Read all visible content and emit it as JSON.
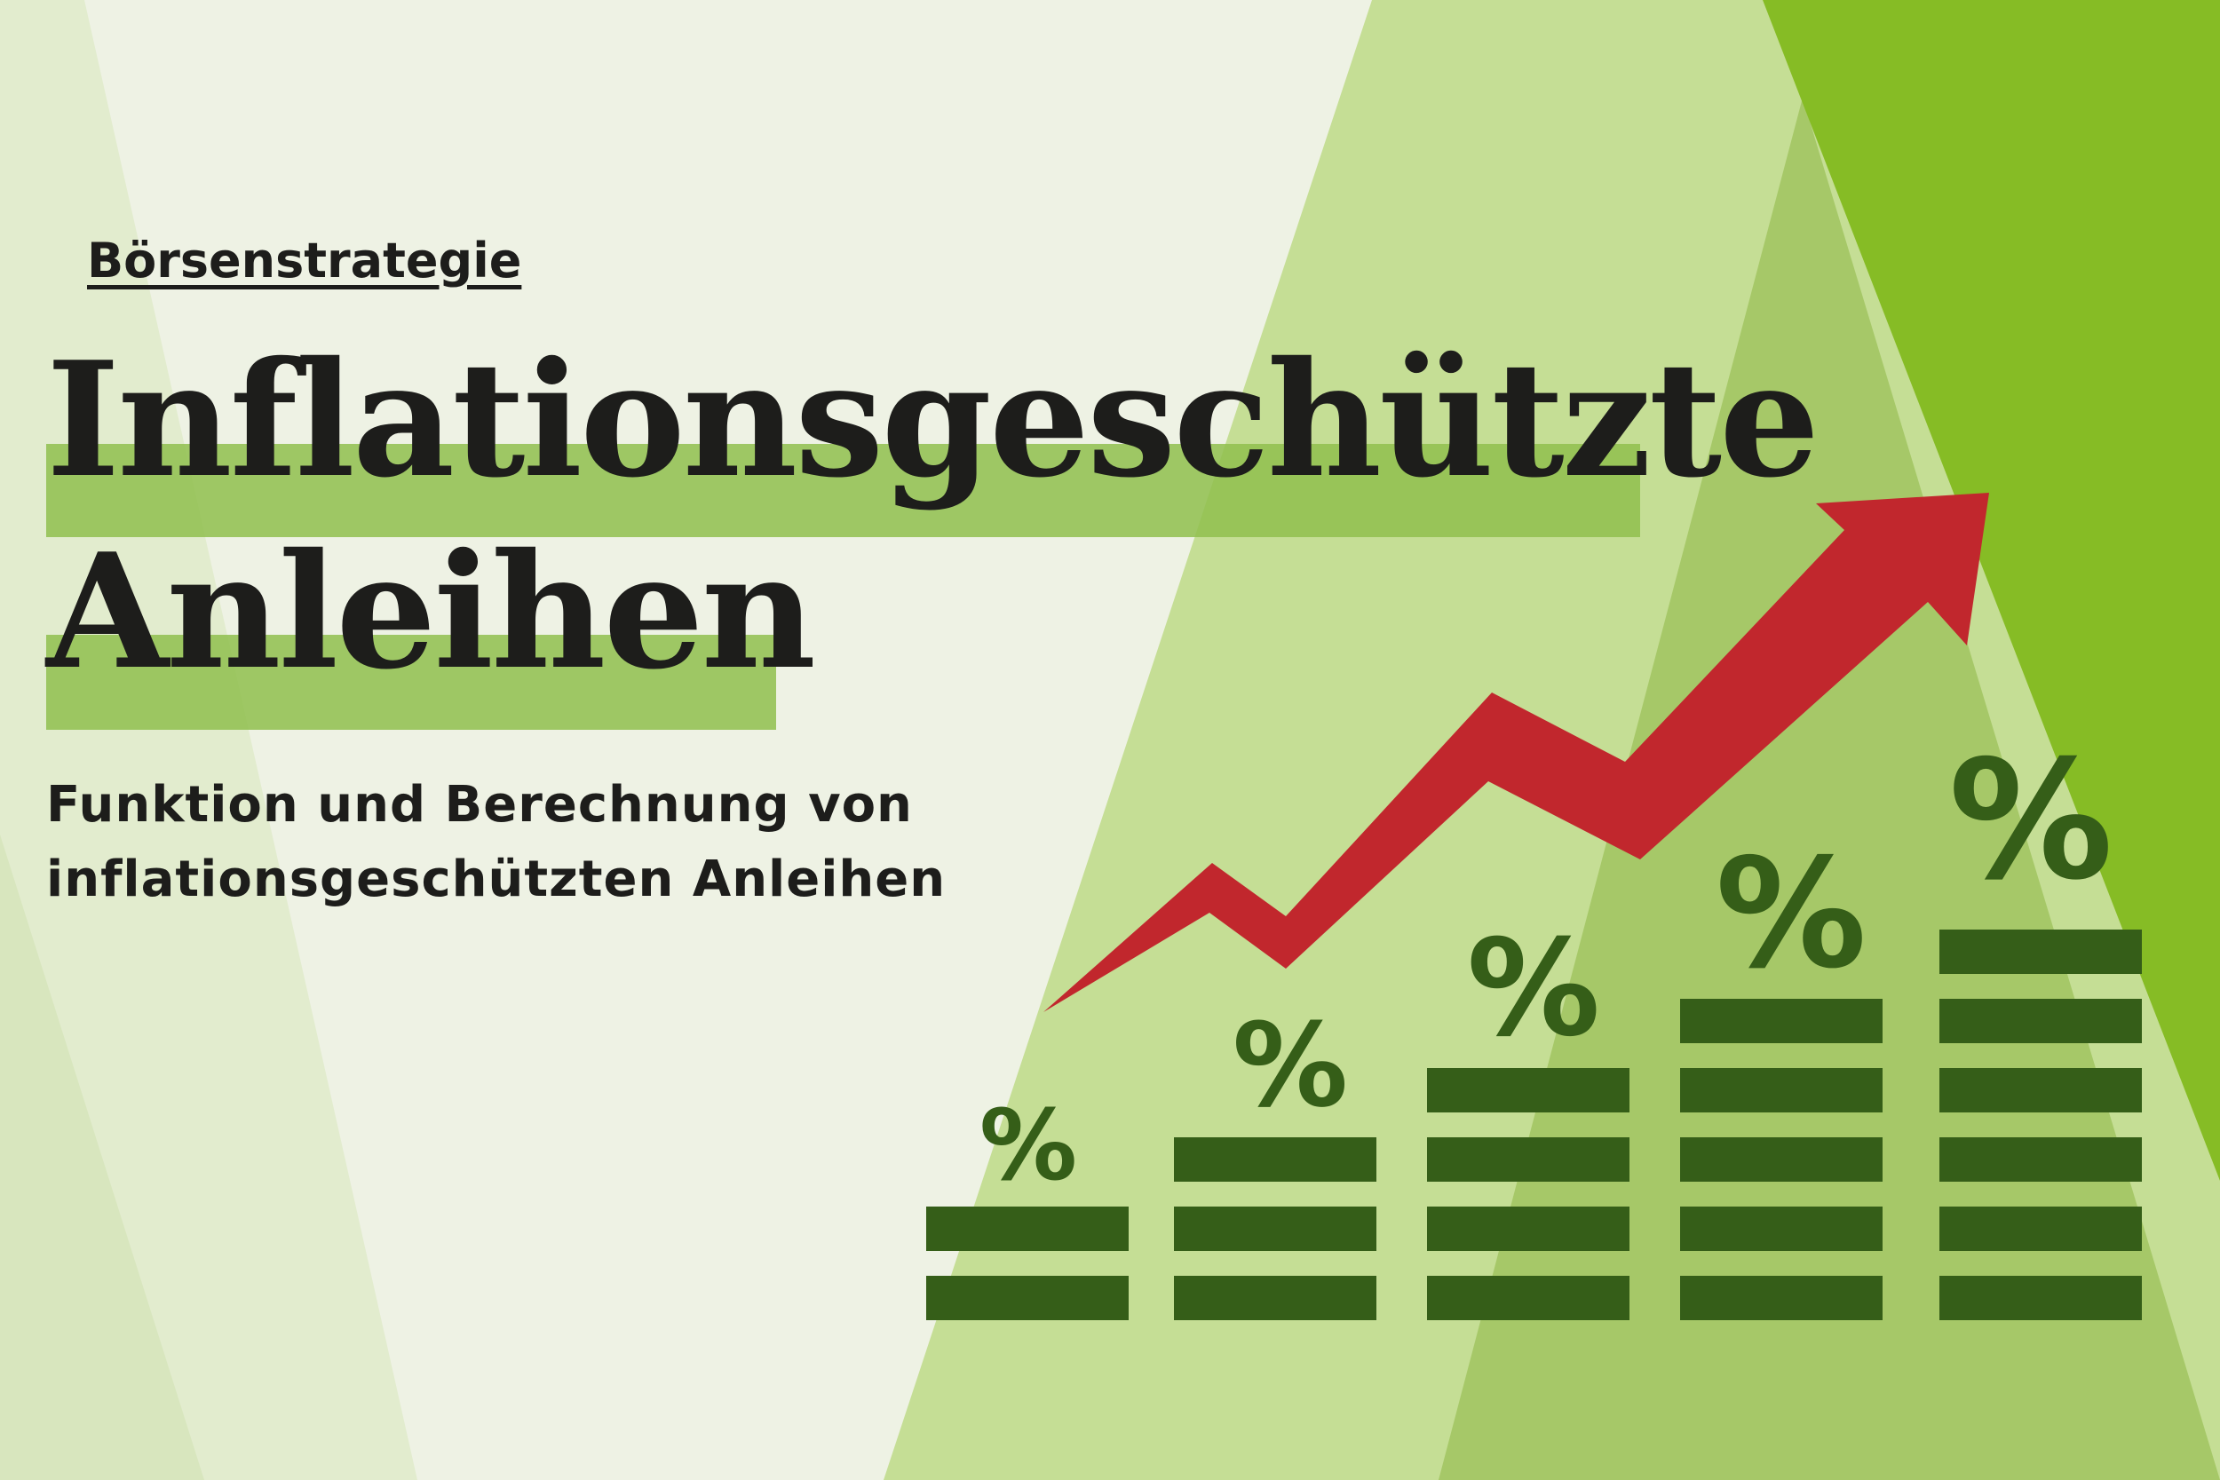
{
  "header": {
    "kicker": "Börsenstrategie",
    "title_line1": "Inflationsgeschützte",
    "title_line2": "Anleihen",
    "subtitle_line1": "Funktion und Berechnung von",
    "subtitle_line2": "inflationsgeschützten Anleihen"
  },
  "graphic": {
    "symbol": "%",
    "stack_bar_counts": [
      2,
      3,
      4,
      5,
      6
    ],
    "arrow_icon": "trend-up-arrow-icon",
    "colors": {
      "bars": "#355e18",
      "arrow": "#c1272d",
      "highlight": "#8fbf4d",
      "accent_green": "#86bc25"
    }
  }
}
